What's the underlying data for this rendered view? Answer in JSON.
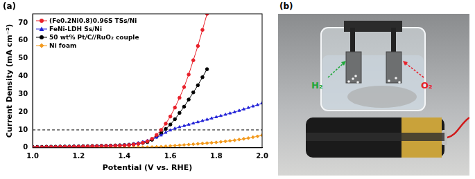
{
  "chart_data": {
    "type": "line",
    "panel_label": "(a)",
    "x_label": "Potential (V vs. RHE)",
    "y_label": "Current Density (mA cm⁻²)",
    "xlim": [
      1.0,
      2.0
    ],
    "xticks": [
      {
        "value": 1.0,
        "label": "1.0"
      },
      1.2,
      1.4,
      1.6,
      1.8,
      {
        "value": 2.0,
        "label": "2.0"
      }
    ],
    "ylim": [
      0,
      75
    ],
    "yticks": [
      0,
      10,
      20,
      30,
      40,
      50,
      60,
      70
    ],
    "grid": false,
    "legend": "top-left",
    "reference_line": {
      "y": 10,
      "line_style": "dashed"
    },
    "x": [
      1.0,
      1.02,
      1.04,
      1.06,
      1.08,
      1.1,
      1.12,
      1.14,
      1.16,
      1.18,
      1.2,
      1.22,
      1.24,
      1.26,
      1.28,
      1.3,
      1.32,
      1.34,
      1.36,
      1.38,
      1.4,
      1.42,
      1.44,
      1.46,
      1.48,
      1.5,
      1.52,
      1.54,
      1.56,
      1.58,
      1.6,
      1.62,
      1.64,
      1.66,
      1.68,
      1.7,
      1.72,
      1.74,
      1.76,
      1.78,
      1.8,
      1.82,
      1.84,
      1.86,
      1.88,
      1.9,
      1.92,
      1.94,
      1.96,
      1.98,
      2.0
    ],
    "series": [
      {
        "name": "(Fe0.2Ni0.8)0.96S TSs/Ni",
        "color": "#e8202a",
        "marker": "circle",
        "values": [
          0.3,
          0.3,
          0.3,
          0.4,
          0.4,
          0.4,
          0.5,
          0.5,
          0.5,
          0.6,
          0.6,
          0.7,
          0.7,
          0.8,
          0.8,
          0.9,
          1.0,
          1.0,
          1.1,
          1.2,
          1.3,
          1.5,
          1.8,
          2.2,
          2.8,
          3.6,
          5.0,
          7.2,
          10.0,
          13.5,
          17.5,
          22.5,
          28,
          34,
          41,
          49,
          57,
          66,
          75,
          null,
          null,
          null,
          null,
          null,
          null,
          null,
          null,
          null,
          null,
          null,
          null
        ]
      },
      {
        "name": "FeNi-LDH Ss/Ni",
        "color": "#2424d8",
        "marker": "triangle",
        "values": [
          0.5,
          0.5,
          0.5,
          0.6,
          0.6,
          0.6,
          0.7,
          0.7,
          0.7,
          0.8,
          0.8,
          0.9,
          0.9,
          1.0,
          1.0,
          1.1,
          1.1,
          1.2,
          1.3,
          1.4,
          1.5,
          1.8,
          2.2,
          2.7,
          3.3,
          4.0,
          4.8,
          5.8,
          7.0,
          8.5,
          9.8,
          10.8,
          11.6,
          12.3,
          13.0,
          13.7,
          14.4,
          15.1,
          15.8,
          16.5,
          17.2,
          17.9,
          18.6,
          19.3,
          20.0,
          20.8,
          21.6,
          22.4,
          23.2,
          24.0,
          25
        ]
      },
      {
        "name": "50 wt% Pt/C//RuO₂ couple",
        "color": "#000000",
        "marker": "circle",
        "values": [
          0.5,
          0.5,
          0.5,
          0.6,
          0.6,
          0.6,
          0.7,
          0.7,
          0.7,
          0.8,
          0.8,
          0.9,
          0.9,
          1.0,
          1.0,
          1.1,
          1.1,
          1.2,
          1.3,
          1.4,
          1.5,
          1.7,
          2.0,
          2.3,
          2.7,
          3.2,
          4.5,
          6.2,
          8.2,
          10.5,
          13,
          16,
          19.5,
          23,
          27,
          31,
          35,
          39.5,
          44,
          null,
          null,
          null,
          null,
          null,
          null,
          null,
          null,
          null,
          null,
          null,
          null
        ]
      },
      {
        "name": "Ni foam",
        "color": "#f39a1e",
        "marker": "diamond",
        "values": [
          0.1,
          0.1,
          0.1,
          0.1,
          0.1,
          0.1,
          0.1,
          0.1,
          0.1,
          0.1,
          0.2,
          0.2,
          0.2,
          0.2,
          0.2,
          0.2,
          0.2,
          0.2,
          0.2,
          0.2,
          0.2,
          0.2,
          0.3,
          0.3,
          0.3,
          0.3,
          0.4,
          0.5,
          0.6,
          0.8,
          1.0,
          1.2,
          1.4,
          1.6,
          1.8,
          2.0,
          2.2,
          2.4,
          2.6,
          2.8,
          3.0,
          3.3,
          3.6,
          3.9,
          4.2,
          4.6,
          5.0,
          5.4,
          5.9,
          6.4,
          7.0
        ]
      }
    ]
  },
  "photo": {
    "panel_label": "(b)",
    "annotations": [
      {
        "text": "H₂",
        "color": "#1fa83a"
      },
      {
        "text": "O₂",
        "color": "#e8202a"
      }
    ]
  }
}
